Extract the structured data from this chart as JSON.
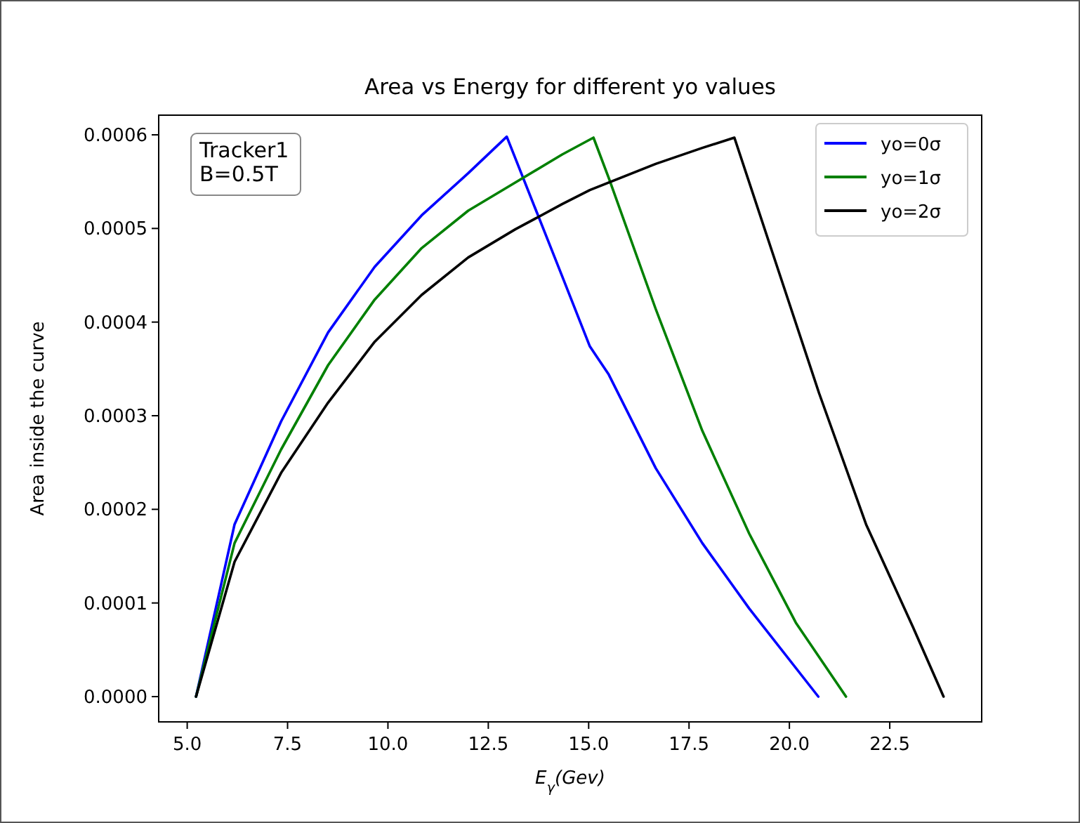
{
  "chart_data": {
    "type": "line",
    "title": "Area vs Energy for different yo values",
    "xlabel": "E$_{γ}$(Gev)",
    "ylabel": "Area inside the curve",
    "annotations": [
      "Tracker1\nB=0.5T"
    ],
    "xlim": [
      4.29,
      24.79
    ],
    "ylim": [
      -2.7e-05,
      0.000621
    ],
    "xticks": [
      {
        "value": 5,
        "label": "5.0"
      },
      {
        "value": 7.5,
        "label": "7.5"
      },
      {
        "value": 10,
        "label": "10.0"
      },
      {
        "value": 12.5,
        "label": "12.5"
      },
      {
        "value": 15,
        "label": "15.0"
      },
      {
        "value": 17.5,
        "label": "17.5"
      },
      {
        "value": 20,
        "label": "20.0"
      },
      {
        "value": 22.5,
        "label": "22.5"
      }
    ],
    "yticks": [
      {
        "value": 0,
        "label": "0.0000"
      },
      {
        "value": 0.0001,
        "label": "0.0001"
      },
      {
        "value": 0.0002,
        "label": "0.0002"
      },
      {
        "value": 0.0003,
        "label": "0.0003"
      },
      {
        "value": 0.0004,
        "label": "0.0004"
      },
      {
        "value": 0.0005,
        "label": "0.0005"
      },
      {
        "value": 0.0006,
        "label": "0.0006"
      }
    ],
    "grid": false,
    "legend": "top right",
    "line_style": "solid",
    "series": [
      {
        "name": "yo=0σ",
        "color": "#0000ff",
        "x": [
          5.22,
          6.18,
          7.34,
          8.51,
          9.67,
          10.84,
          12.0,
          12.96,
          14.34,
          15.03,
          15.5,
          16.67,
          17.83,
          19.0,
          20.72
        ],
        "values": [
          0,
          0.000184,
          0.000294,
          0.000389,
          0.000459,
          0.000514,
          0.000559,
          0.000598,
          0.000449,
          0.000374,
          0.000344,
          0.000244,
          0.000164,
          9.4e-05,
          0
        ]
      },
      {
        "name": "yo=1σ",
        "color": "#008000",
        "x": [
          5.22,
          6.18,
          7.34,
          8.51,
          9.67,
          10.84,
          12.0,
          13.17,
          14.34,
          15.12,
          15.5,
          16.67,
          17.83,
          19.0,
          20.16,
          21.41
        ],
        "values": [
          0,
          0.000164,
          0.000264,
          0.000354,
          0.000424,
          0.000479,
          0.000519,
          0.000549,
          0.000579,
          0.000597,
          0.000554,
          0.000414,
          0.000284,
          0.000174,
          7.9e-05,
          0
        ]
      },
      {
        "name": "yo=2σ",
        "color": "#000000",
        "x": [
          5.22,
          6.18,
          7.34,
          8.51,
          9.67,
          10.84,
          12.0,
          13.17,
          14.34,
          15.03,
          16.67,
          17.83,
          18.63,
          19.58,
          20.74,
          21.91,
          23.08,
          23.84
        ],
        "values": [
          0,
          0.000144,
          0.000239,
          0.000314,
          0.000379,
          0.000429,
          0.000469,
          0.000499,
          0.000526,
          0.000541,
          0.000569,
          0.000586,
          0.000597,
          0.000474,
          0.000324,
          0.000184,
          7.4e-05,
          0
        ]
      }
    ]
  }
}
